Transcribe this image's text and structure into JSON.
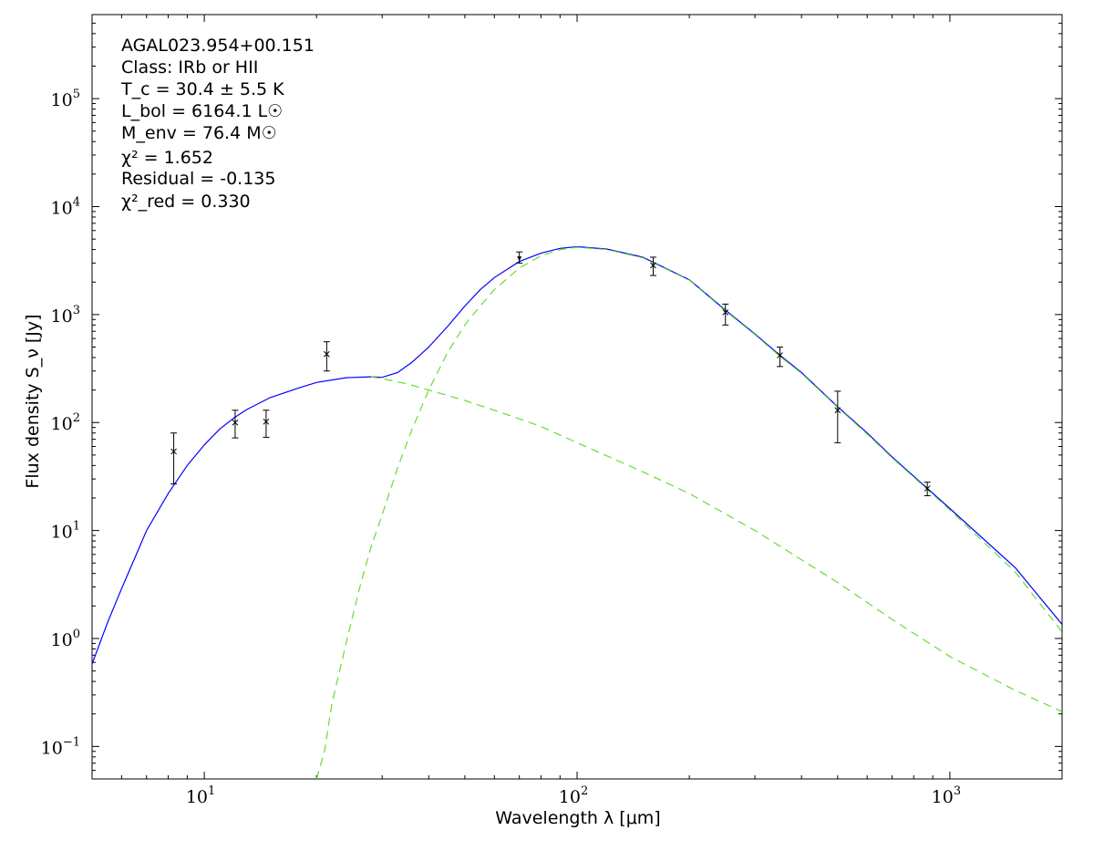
{
  "chart_data": {
    "type": "line",
    "xscale": "log",
    "yscale": "log",
    "xlim": [
      5,
      2000
    ],
    "ylim": [
      0.05,
      600000
    ],
    "xlabel": "Wavelength λ [μm]",
    "ylabel": "Flux density S_ν [Jy]",
    "x_ticks": [
      10,
      100,
      1000
    ],
    "y_ticks": [
      0.1,
      1,
      10,
      100,
      1000,
      10000,
      100000
    ],
    "annotation": {
      "source": "AGAL023.954+00.151",
      "class": "Class: IRb or HII",
      "tc": "T_c = 30.4 ± 5.5 K",
      "lbol": "L_bol = 6164.1 L☉",
      "menv": "M_env = 76.4 M☉",
      "chi2": "χ² = 1.652",
      "residual": "Residual = -0.135",
      "chi2red": "χ²_red = 0.330"
    },
    "observations": [
      {
        "x": 8.28,
        "y": 54,
        "err_low": 27,
        "err_high": 80
      },
      {
        "x": 12.1,
        "y": 100,
        "err_low": 72,
        "err_high": 130
      },
      {
        "x": 14.65,
        "y": 102,
        "err_low": 73,
        "err_high": 130
      },
      {
        "x": 21.3,
        "y": 430,
        "err_low": 300,
        "err_high": 560
      },
      {
        "x": 70,
        "y": 3200,
        "err_low": 3000,
        "err_high": 3800,
        "upper_limit": true
      },
      {
        "x": 160,
        "y": 2850,
        "err_low": 2300,
        "err_high": 3400
      },
      {
        "x": 250,
        "y": 1050,
        "err_low": 800,
        "err_high": 1250
      },
      {
        "x": 350,
        "y": 420,
        "err_low": 330,
        "err_high": 500
      },
      {
        "x": 500,
        "y": 130,
        "err_low": 65,
        "err_high": 195
      },
      {
        "x": 870,
        "y": 24.5,
        "err_low": 21,
        "err_high": 28
      }
    ],
    "series": [
      {
        "style": "solid",
        "color": "#0000ff",
        "points": [
          [
            5,
            0.58
          ],
          [
            5.5,
            1.4
          ],
          [
            6,
            2.9
          ],
          [
            7,
            10
          ],
          [
            8,
            22
          ],
          [
            9,
            40
          ],
          [
            10,
            62
          ],
          [
            11,
            87
          ],
          [
            12,
            110
          ],
          [
            13,
            132
          ],
          [
            15,
            170
          ],
          [
            18,
            210
          ],
          [
            20,
            235
          ],
          [
            24,
            260
          ],
          [
            28,
            265
          ],
          [
            30,
            262
          ],
          [
            33,
            290
          ],
          [
            36,
            360
          ],
          [
            40,
            500
          ],
          [
            45,
            780
          ],
          [
            50,
            1200
          ],
          [
            55,
            1700
          ],
          [
            60,
            2200
          ],
          [
            70,
            3100
          ],
          [
            80,
            3700
          ],
          [
            90,
            4100
          ],
          [
            100,
            4250
          ],
          [
            120,
            4050
          ],
          [
            150,
            3400
          ],
          [
            200,
            2100
          ],
          [
            250,
            1100
          ],
          [
            300,
            660
          ],
          [
            350,
            420
          ],
          [
            400,
            290
          ],
          [
            500,
            140
          ],
          [
            600,
            80
          ],
          [
            700,
            48
          ],
          [
            870,
            24.5
          ],
          [
            1000,
            16
          ],
          [
            1500,
            4.5
          ],
          [
            2000,
            1.35
          ]
        ]
      },
      {
        "style": "dashed",
        "color": "#66dd33",
        "points": [
          [
            20,
            0.05
          ],
          [
            21,
            0.09
          ],
          [
            22,
            0.25
          ],
          [
            24,
            0.9
          ],
          [
            26,
            2.8
          ],
          [
            28,
            7
          ],
          [
            30,
            14
          ],
          [
            33,
            38
          ],
          [
            36,
            85
          ],
          [
            40,
            200
          ],
          [
            45,
            450
          ],
          [
            50,
            800
          ],
          [
            55,
            1200
          ],
          [
            60,
            1700
          ],
          [
            70,
            2700
          ],
          [
            80,
            3500
          ],
          [
            90,
            4000
          ],
          [
            100,
            4200
          ],
          [
            120,
            4000
          ],
          [
            150,
            3350
          ],
          [
            200,
            2080
          ],
          [
            250,
            1080
          ],
          [
            300,
            650
          ],
          [
            350,
            410
          ],
          [
            400,
            285
          ],
          [
            500,
            138
          ],
          [
            600,
            78
          ],
          [
            700,
            47
          ],
          [
            870,
            24
          ],
          [
            1000,
            15.5
          ],
          [
            1500,
            4.1
          ],
          [
            2000,
            1.15
          ]
        ]
      },
      {
        "style": "dashed",
        "color": "#66dd33",
        "points": [
          [
            28,
            265
          ],
          [
            30,
            255
          ],
          [
            35,
            228
          ],
          [
            40,
            200
          ],
          [
            50,
            160
          ],
          [
            60,
            130
          ],
          [
            80,
            92
          ],
          [
            100,
            65
          ],
          [
            150,
            35
          ],
          [
            200,
            22
          ],
          [
            300,
            10
          ],
          [
            500,
            3.3
          ],
          [
            700,
            1.5
          ],
          [
            1000,
            0.68
          ],
          [
            1500,
            0.33
          ],
          [
            2000,
            0.21
          ]
        ]
      }
    ]
  }
}
